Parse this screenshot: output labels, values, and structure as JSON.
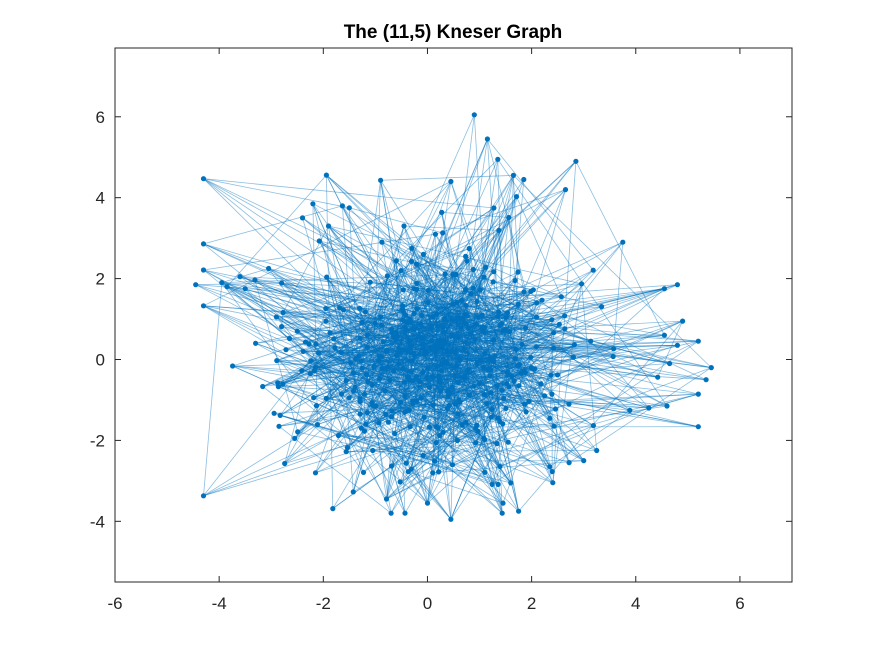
{
  "chart_data": {
    "type": "scatter",
    "title": "The (11,5) Kneser Graph",
    "xlabel": "",
    "ylabel": "",
    "xlim": [
      -6,
      7
    ],
    "ylim": [
      -5.5,
      7.7
    ],
    "x_ticks": [
      -6,
      -4,
      -2,
      0,
      2,
      4,
      6
    ],
    "y_ticks": [
      -4,
      -2,
      0,
      2,
      4,
      6
    ],
    "x_tick_labels": [
      "-6",
      "-4",
      "-2",
      "0",
      "2",
      "4",
      "6"
    ],
    "y_tick_labels": [
      "-4",
      "-2",
      "0",
      "2",
      "4",
      "6"
    ],
    "grid": false,
    "legend": "none",
    "series": [
      {
        "color": "#0072BD",
        "node_count": 462,
        "degree": 6,
        "outer_nodes": [
          [
            -4.45,
            1.85
          ],
          [
            -3.95,
            1.9
          ],
          [
            -3.85,
            1.8
          ],
          [
            -3.6,
            2.05
          ],
          [
            -3.5,
            1.75
          ],
          [
            -3.3,
            0.4
          ],
          [
            -3.05,
            2.25
          ],
          [
            -2.9,
            1.05
          ],
          [
            -2.85,
            -1.65
          ],
          [
            -2.55,
            -1.95
          ],
          [
            -2.5,
            0.7
          ],
          [
            -2.2,
            3.85
          ],
          [
            -2.15,
            -2.8
          ],
          [
            -2.4,
            3.5
          ],
          [
            -1.9,
            3.3
          ],
          [
            -1.5,
            3.75
          ],
          [
            -0.45,
            3.3
          ],
          [
            0.45,
            4.4
          ],
          [
            0.9,
            6.05
          ],
          [
            1.15,
            5.45
          ],
          [
            1.35,
            4.95
          ],
          [
            1.65,
            4.55
          ],
          [
            1.85,
            4.45
          ],
          [
            2.65,
            4.2
          ],
          [
            2.85,
            4.9
          ],
          [
            3.75,
            2.9
          ],
          [
            4.55,
            1.75
          ],
          [
            4.8,
            1.85
          ],
          [
            4.9,
            0.95
          ],
          [
            4.55,
            0.6
          ],
          [
            4.8,
            0.35
          ],
          [
            4.65,
            -0.1
          ],
          [
            5.45,
            -0.2
          ],
          [
            5.35,
            -0.5
          ],
          [
            4.6,
            -1.15
          ],
          [
            4.25,
            -1.2
          ],
          [
            3.25,
            -2.25
          ],
          [
            3.0,
            -2.5
          ],
          [
            2.35,
            -2.65
          ],
          [
            1.75,
            -3.75
          ],
          [
            1.6,
            -3.05
          ],
          [
            0.45,
            -3.95
          ],
          [
            0.0,
            -3.55
          ],
          [
            0.1,
            -2.8
          ],
          [
            1.45,
            -3.55
          ],
          [
            0.95,
            -0.1
          ],
          [
            -0.75,
            -1.55
          ],
          [
            -1.15,
            0.3
          ],
          [
            0.25,
            0.45
          ],
          [
            0.6,
            -1.0
          ],
          [
            -0.2,
            1.25
          ],
          [
            1.05,
            1.1
          ],
          [
            -1.65,
            -0.85
          ],
          [
            -0.9,
            1.05
          ],
          [
            1.35,
            -1.45
          ],
          [
            -0.35,
            -0.5
          ],
          [
            0.3,
            -1.8
          ],
          [
            1.7,
            0.25
          ],
          [
            -1.95,
            0.95
          ],
          [
            0.55,
            2.1
          ],
          [
            -0.3,
            2.75
          ],
          [
            2.1,
            1.4
          ],
          [
            -2.25,
            -0.35
          ],
          [
            2.25,
            -0.9
          ],
          [
            -1.05,
            -2.25
          ]
        ]
      }
    ]
  }
}
